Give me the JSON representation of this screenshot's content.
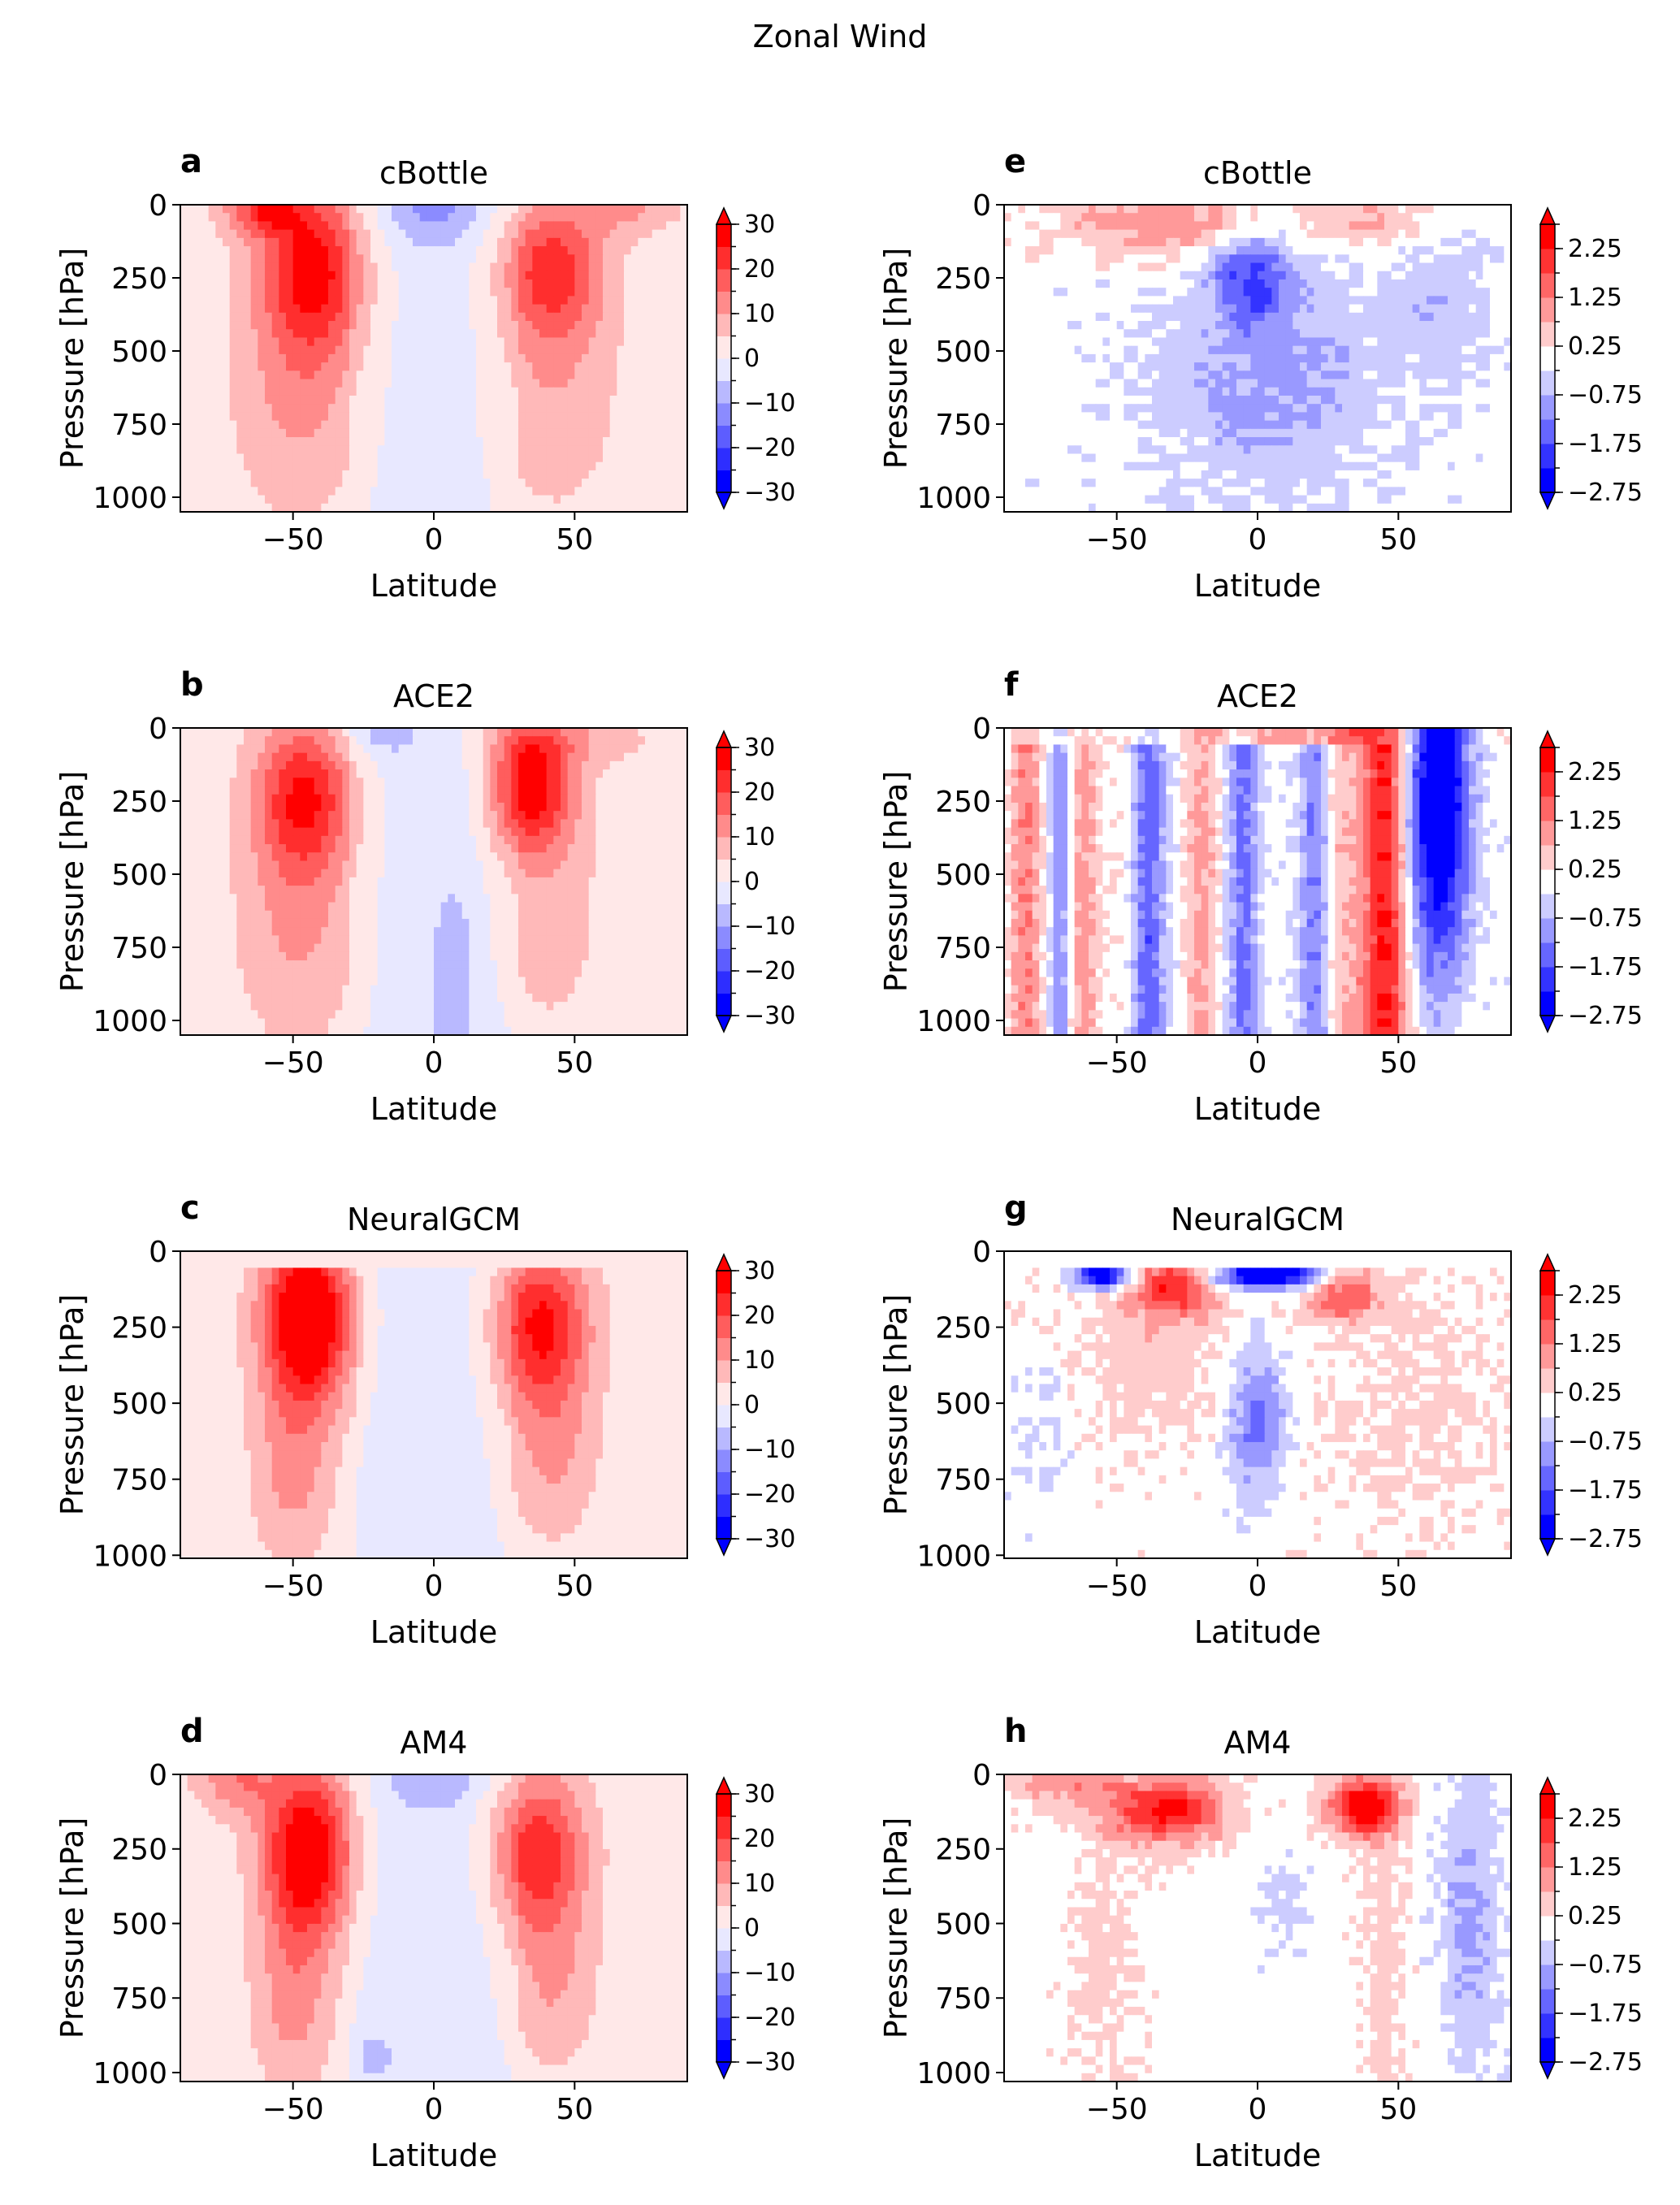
{
  "figure": {
    "title": "Zonal Wind"
  },
  "chart_data": [
    {
      "letter": "a",
      "title": "cBottle",
      "type": "heatmap",
      "variant": "mean",
      "xlabel": "Latitude",
      "ylabel": "Pressure [hPa]",
      "xlim": [
        -90,
        90
      ],
      "ylim": [
        1050,
        0
      ],
      "xticks": [
        -50,
        0,
        50
      ],
      "yticks": [
        0,
        250,
        500,
        750,
        1000
      ],
      "colorbar": {
        "levels": [
          -30,
          -25,
          -20,
          -15,
          -10,
          -5,
          0,
          5,
          10,
          15,
          20,
          25,
          30
        ],
        "tick_labels": [
          "30",
          "20",
          "10",
          "0",
          "−10",
          "−20",
          "−30"
        ],
        "tick_values": [
          30,
          20,
          10,
          0,
          -10,
          -20,
          -30
        ],
        "extend": "both",
        "cmap": "bwr"
      }
    },
    {
      "letter": "b",
      "title": "ACE2",
      "type": "heatmap",
      "variant": "mean",
      "xlabel": "Latitude",
      "ylabel": "Pressure [hPa]",
      "xlim": [
        -90,
        90
      ],
      "ylim": [
        1050,
        0
      ],
      "xticks": [
        -50,
        0,
        50
      ],
      "yticks": [
        0,
        250,
        500,
        750,
        1000
      ],
      "colorbar": {
        "levels": [
          -30,
          -25,
          -20,
          -15,
          -10,
          -5,
          0,
          5,
          10,
          15,
          20,
          25,
          30
        ],
        "tick_labels": [
          "30",
          "20",
          "10",
          "0",
          "−10",
          "−20",
          "−30"
        ],
        "tick_values": [
          30,
          20,
          10,
          0,
          -10,
          -20,
          -30
        ],
        "extend": "both",
        "cmap": "bwr"
      }
    },
    {
      "letter": "c",
      "title": "NeuralGCM",
      "type": "heatmap",
      "variant": "mean",
      "xlabel": "Latitude",
      "ylabel": "Pressure [hPa]",
      "xlim": [
        -90,
        90
      ],
      "ylim": [
        1010,
        0
      ],
      "xticks": [
        -50,
        0,
        50
      ],
      "yticks": [
        0,
        250,
        500,
        750,
        1000
      ],
      "colorbar": {
        "levels": [
          -30,
          -25,
          -20,
          -15,
          -10,
          -5,
          0,
          5,
          10,
          15,
          20,
          25,
          30
        ],
        "tick_labels": [
          "30",
          "20",
          "10",
          "0",
          "−10",
          "−20",
          "−30"
        ],
        "tick_values": [
          30,
          20,
          10,
          0,
          -10,
          -20,
          -30
        ],
        "extend": "both",
        "cmap": "bwr"
      }
    },
    {
      "letter": "d",
      "title": "AM4",
      "type": "heatmap",
      "variant": "mean",
      "xlabel": "Latitude",
      "ylabel": "Pressure [hPa]",
      "xlim": [
        -90,
        90
      ],
      "ylim": [
        1030,
        0
      ],
      "xticks": [
        -50,
        0,
        50
      ],
      "yticks": [
        0,
        250,
        500,
        750,
        1000
      ],
      "colorbar": {
        "levels": [
          -30,
          -25,
          -20,
          -15,
          -10,
          -5,
          0,
          5,
          10,
          15,
          20,
          25,
          30
        ],
        "tick_labels": [
          "30",
          "20",
          "10",
          "0",
          "−10",
          "−20",
          "−30"
        ],
        "tick_values": [
          30,
          20,
          10,
          0,
          -10,
          -20,
          -30
        ],
        "extend": "both",
        "cmap": "bwr"
      }
    },
    {
      "letter": "e",
      "title": "cBottle",
      "type": "heatmap",
      "variant": "diff",
      "xlabel": "Latitude",
      "ylabel": "Pressure [hPa]",
      "xlim": [
        -90,
        90
      ],
      "ylim": [
        1050,
        0
      ],
      "xticks": [
        -50,
        0,
        50
      ],
      "yticks": [
        0,
        250,
        500,
        750,
        1000
      ],
      "colorbar": {
        "levels": [
          -2.75,
          -2.25,
          -1.75,
          -1.25,
          -0.75,
          -0.25,
          0.25,
          0.75,
          1.25,
          1.75,
          2.25,
          2.75
        ],
        "tick_labels": [
          "2.25",
          "1.25",
          "0.25",
          "−0.75",
          "−1.75",
          "−2.75"
        ],
        "tick_values": [
          2.25,
          1.25,
          0.25,
          -0.75,
          -1.75,
          -2.75
        ],
        "extend": "both",
        "cmap": "bwr"
      }
    },
    {
      "letter": "f",
      "title": "ACE2",
      "type": "heatmap",
      "variant": "diff",
      "xlabel": "Latitude",
      "ylabel": "Pressure [hPa]",
      "xlim": [
        -90,
        90
      ],
      "ylim": [
        1050,
        0
      ],
      "xticks": [
        -50,
        0,
        50
      ],
      "yticks": [
        0,
        250,
        500,
        750,
        1000
      ],
      "colorbar": {
        "levels": [
          -2.75,
          -2.25,
          -1.75,
          -1.25,
          -0.75,
          -0.25,
          0.25,
          0.75,
          1.25,
          1.75,
          2.25,
          2.75
        ],
        "tick_labels": [
          "2.25",
          "1.25",
          "0.25",
          "−0.75",
          "−1.75",
          "−2.75"
        ],
        "tick_values": [
          2.25,
          1.25,
          0.25,
          -0.75,
          -1.75,
          -2.75
        ],
        "extend": "both",
        "cmap": "bwr"
      }
    },
    {
      "letter": "g",
      "title": "NeuralGCM",
      "type": "heatmap",
      "variant": "diff",
      "xlabel": "Latitude",
      "ylabel": "Pressure [hPa]",
      "xlim": [
        -90,
        90
      ],
      "ylim": [
        1010,
        0
      ],
      "xticks": [
        -50,
        0,
        50
      ],
      "yticks": [
        0,
        250,
        500,
        750,
        1000
      ],
      "colorbar": {
        "levels": [
          -2.75,
          -2.25,
          -1.75,
          -1.25,
          -0.75,
          -0.25,
          0.25,
          0.75,
          1.25,
          1.75,
          2.25,
          2.75
        ],
        "tick_labels": [
          "2.25",
          "1.25",
          "0.25",
          "−0.75",
          "−1.75",
          "−2.75"
        ],
        "tick_values": [
          2.25,
          1.25,
          0.25,
          -0.75,
          -1.75,
          -2.75
        ],
        "extend": "both",
        "cmap": "bwr"
      }
    },
    {
      "letter": "h",
      "title": "AM4",
      "type": "heatmap",
      "variant": "diff",
      "xlabel": "Latitude",
      "ylabel": "Pressure [hPa]",
      "xlim": [
        -90,
        90
      ],
      "ylim": [
        1030,
        0
      ],
      "xticks": [
        -50,
        0,
        50
      ],
      "yticks": [
        0,
        250,
        500,
        750,
        1000
      ],
      "colorbar": {
        "levels": [
          -2.75,
          -2.25,
          -1.75,
          -1.25,
          -0.75,
          -0.25,
          0.25,
          0.75,
          1.25,
          1.75,
          2.25,
          2.75
        ],
        "tick_labels": [
          "2.25",
          "1.25",
          "0.25",
          "−0.75",
          "−1.75",
          "−2.75"
        ],
        "tick_values": [
          2.25,
          1.25,
          0.25,
          -0.75,
          -1.75,
          -2.75
        ],
        "extend": "both",
        "cmap": "bwr"
      }
    }
  ]
}
